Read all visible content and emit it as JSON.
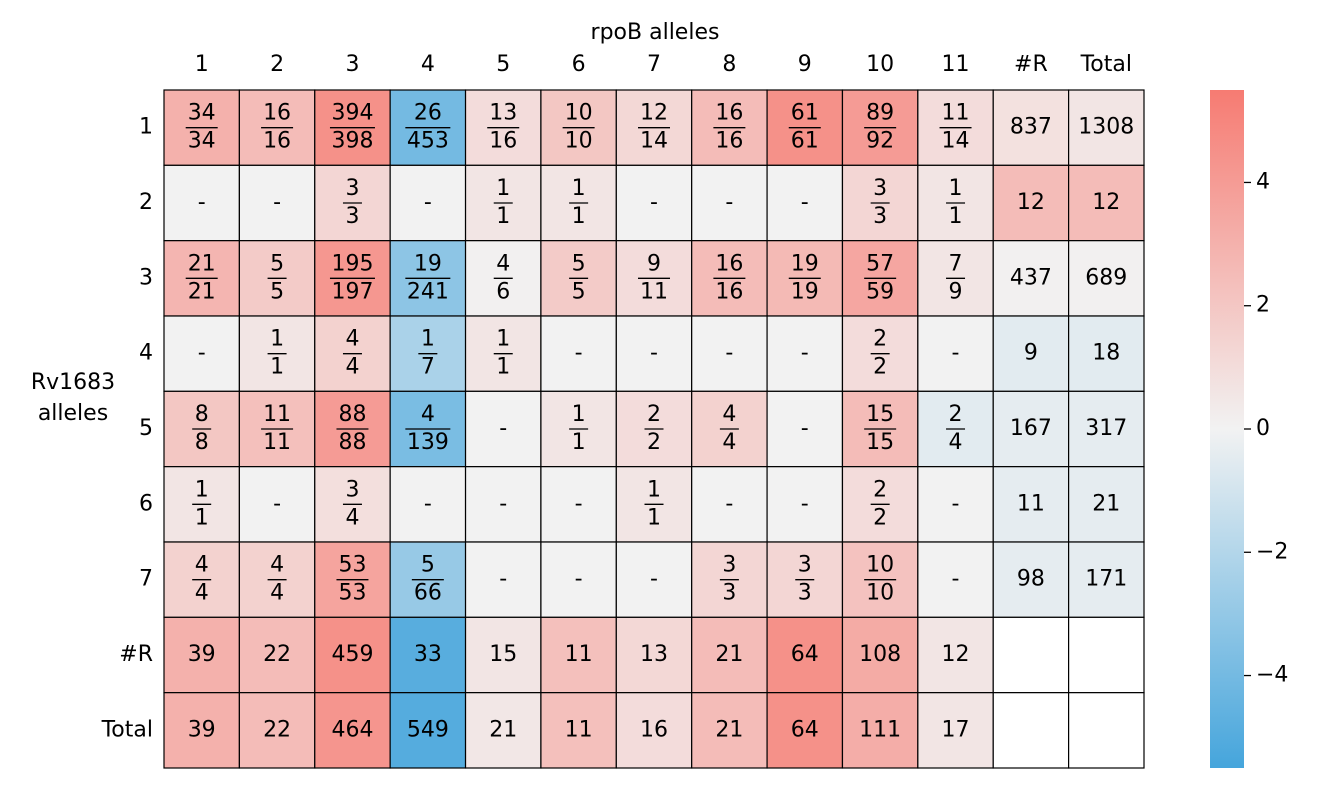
{
  "chart_data": {
    "type": "heatmap",
    "x_label": "rpoB alleles",
    "y_label": [
      "Rv1683",
      "alleles"
    ],
    "x_categories": [
      "1",
      "2",
      "3",
      "4",
      "5",
      "6",
      "7",
      "8",
      "9",
      "10",
      "11",
      "#R",
      "Total"
    ],
    "y_categories": [
      "1",
      "2",
      "3",
      "4",
      "5",
      "6",
      "7",
      "#R",
      "Total"
    ],
    "cmap": [
      "#45a5dc",
      "#f2f2f2",
      "#f67b72"
    ],
    "missing_color": "#f2f2f2",
    "values": [
      [
        3.0,
        2.5,
        4.5,
        -4.0,
        1.0,
        2.0,
        1.2,
        2.5,
        4.5,
        4.0,
        1.0,
        0.8,
        0.6
      ],
      [
        null,
        null,
        1.3,
        null,
        0.6,
        0.6,
        null,
        null,
        null,
        1.3,
        0.6,
        2.5,
        2.5
      ],
      [
        2.8,
        1.8,
        4.2,
        -3.2,
        0.1,
        1.8,
        1.0,
        2.5,
        2.6,
        3.5,
        0.6,
        0.1,
        0.1
      ],
      [
        null,
        0.6,
        1.5,
        -2.3,
        0.6,
        null,
        null,
        null,
        null,
        1.0,
        null,
        -0.5,
        -0.5
      ],
      [
        2.0,
        2.3,
        4.0,
        -3.8,
        null,
        0.6,
        1.0,
        1.5,
        null,
        2.5,
        -0.5,
        -0.4,
        -0.4
      ],
      [
        0.6,
        null,
        0.9,
        null,
        null,
        null,
        0.6,
        null,
        null,
        1.0,
        null,
        -0.4,
        -0.4
      ],
      [
        1.5,
        1.5,
        3.6,
        -2.9,
        null,
        null,
        null,
        1.3,
        1.3,
        2.2,
        null,
        -0.4,
        -0.4
      ],
      [
        3.0,
        2.5,
        4.5,
        -4.9,
        0.6,
        2.3,
        1.2,
        2.5,
        4.5,
        3.3,
        0.6,
        null,
        null
      ],
      [
        3.0,
        2.5,
        4.3,
        -5.0,
        0.5,
        2.3,
        1.0,
        2.5,
        4.5,
        3.2,
        0.6,
        null,
        null
      ]
    ],
    "cell_labels": [
      [
        {
          "num": 34,
          "den": 34
        },
        {
          "num": 16,
          "den": 16
        },
        {
          "num": 394,
          "den": 398
        },
        {
          "num": 26,
          "den": 453
        },
        {
          "num": 13,
          "den": 16
        },
        {
          "num": 10,
          "den": 10
        },
        {
          "num": 12,
          "den": 14
        },
        {
          "num": 16,
          "den": 16
        },
        {
          "num": 61,
          "den": 61
        },
        {
          "num": 89,
          "den": 92
        },
        {
          "num": 11,
          "den": 14
        },
        837,
        1308
      ],
      [
        "-",
        "-",
        {
          "num": 3,
          "den": 3
        },
        "-",
        {
          "num": 1,
          "den": 1
        },
        {
          "num": 1,
          "den": 1
        },
        "-",
        "-",
        "-",
        {
          "num": 3,
          "den": 3
        },
        {
          "num": 1,
          "den": 1
        },
        12,
        12
      ],
      [
        {
          "num": 21,
          "den": 21
        },
        {
          "num": 5,
          "den": 5
        },
        {
          "num": 195,
          "den": 197
        },
        {
          "num": 19,
          "den": 241
        },
        {
          "num": 4,
          "den": 6
        },
        {
          "num": 5,
          "den": 5
        },
        {
          "num": 9,
          "den": 11
        },
        {
          "num": 16,
          "den": 16
        },
        {
          "num": 19,
          "den": 19
        },
        {
          "num": 57,
          "den": 59
        },
        {
          "num": 7,
          "den": 9
        },
        437,
        689
      ],
      [
        "-",
        {
          "num": 1,
          "den": 1
        },
        {
          "num": 4,
          "den": 4
        },
        {
          "num": 1,
          "den": 7
        },
        {
          "num": 1,
          "den": 1
        },
        "-",
        "-",
        "-",
        "-",
        {
          "num": 2,
          "den": 2
        },
        "-",
        9,
        18
      ],
      [
        {
          "num": 8,
          "den": 8
        },
        {
          "num": 11,
          "den": 11
        },
        {
          "num": 88,
          "den": 88
        },
        {
          "num": 4,
          "den": 139
        },
        "-",
        {
          "num": 1,
          "den": 1
        },
        {
          "num": 2,
          "den": 2
        },
        {
          "num": 4,
          "den": 4
        },
        "-",
        {
          "num": 15,
          "den": 15
        },
        {
          "num": 2,
          "den": 4
        },
        167,
        317
      ],
      [
        {
          "num": 1,
          "den": 1
        },
        "-",
        {
          "num": 3,
          "den": 4
        },
        "-",
        "-",
        "-",
        {
          "num": 1,
          "den": 1
        },
        "-",
        "-",
        {
          "num": 2,
          "den": 2
        },
        "-",
        11,
        21
      ],
      [
        {
          "num": 4,
          "den": 4
        },
        {
          "num": 4,
          "den": 4
        },
        {
          "num": 53,
          "den": 53
        },
        {
          "num": 5,
          "den": 66
        },
        "-",
        "-",
        "-",
        {
          "num": 3,
          "den": 3
        },
        {
          "num": 3,
          "den": 3
        },
        {
          "num": 10,
          "den": 10
        },
        "-",
        98,
        171
      ],
      [
        39,
        22,
        459,
        33,
        15,
        11,
        13,
        21,
        64,
        108,
        12,
        null,
        null
      ],
      [
        39,
        22,
        464,
        549,
        21,
        11,
        16,
        21,
        64,
        111,
        17,
        null,
        null
      ]
    ],
    "colorbar_lim": [
      -5.5,
      5.5
    ],
    "colorbar_ticks": [
      {
        "value": -4,
        "label": "−4"
      },
      {
        "value": -2,
        "label": "−2"
      },
      0,
      2,
      4
    ]
  }
}
